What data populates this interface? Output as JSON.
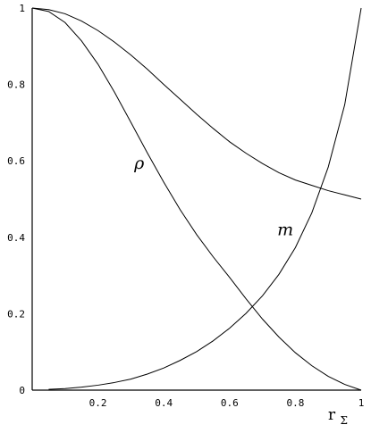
{
  "chart_data": {
    "type": "line",
    "title": "",
    "xlabel": "r",
    "xlabel_subscript": "Σ",
    "ylabel": "",
    "xlim": [
      0,
      1
    ],
    "ylim": [
      0,
      1
    ],
    "grid": false,
    "x_ticks": [
      {
        "value": 0.2,
        "label": "0.2"
      },
      {
        "value": 0.4,
        "label": "0.4"
      },
      {
        "value": 0.6,
        "label": "0.6"
      },
      {
        "value": 0.8,
        "label": "0.8"
      },
      {
        "value": 1.0,
        "label": "1"
      }
    ],
    "y_ticks": [
      {
        "value": 0.0,
        "label": "0"
      },
      {
        "value": 0.2,
        "label": "0.2"
      },
      {
        "value": 0.4,
        "label": "0.4"
      },
      {
        "value": 0.6,
        "label": "0.6"
      },
      {
        "value": 0.8,
        "label": "0.8"
      },
      {
        "value": 1.0,
        "label": "1"
      }
    ],
    "series": [
      {
        "label": "ρ",
        "label_anchor": {
          "x": 0.31,
          "y": 0.58
        },
        "x": [
          0,
          0.05,
          0.1,
          0.15,
          0.2,
          0.25,
          0.3,
          0.35,
          0.4,
          0.45,
          0.5,
          0.55,
          0.6,
          0.65,
          0.7,
          0.75,
          0.8,
          0.85,
          0.9,
          0.95,
          1.0
        ],
        "y": [
          1.0,
          0.991,
          0.962,
          0.914,
          0.853,
          0.78,
          0.701,
          0.621,
          0.544,
          0.472,
          0.407,
          0.349,
          0.295,
          0.239,
          0.186,
          0.139,
          0.098,
          0.064,
          0.036,
          0.015,
          0.0
        ]
      },
      {
        "label": "",
        "x": [
          0,
          0.05,
          0.1,
          0.15,
          0.2,
          0.25,
          0.3,
          0.35,
          0.4,
          0.45,
          0.5,
          0.55,
          0.6,
          0.65,
          0.7,
          0.75,
          0.8,
          0.85,
          0.9,
          0.95,
          1.0
        ],
        "y": [
          1.0,
          0.996,
          0.985,
          0.966,
          0.941,
          0.911,
          0.877,
          0.84,
          0.8,
          0.761,
          0.722,
          0.685,
          0.65,
          0.62,
          0.593,
          0.569,
          0.55,
          0.536,
          0.522,
          0.511,
          0.5
        ]
      },
      {
        "label": "m",
        "label_anchor": {
          "x": 0.745,
          "y": 0.405
        },
        "x": [
          0.05,
          0.1,
          0.15,
          0.2,
          0.25,
          0.3,
          0.35,
          0.4,
          0.45,
          0.5,
          0.55,
          0.6,
          0.65,
          0.7,
          0.75,
          0.8,
          0.85,
          0.9,
          0.95,
          1.0
        ],
        "y": [
          0.002,
          0.004,
          0.008,
          0.013,
          0.02,
          0.029,
          0.042,
          0.058,
          0.078,
          0.101,
          0.129,
          0.162,
          0.201,
          0.247,
          0.303,
          0.373,
          0.464,
          0.584,
          0.747,
          1.0
        ]
      }
    ]
  }
}
